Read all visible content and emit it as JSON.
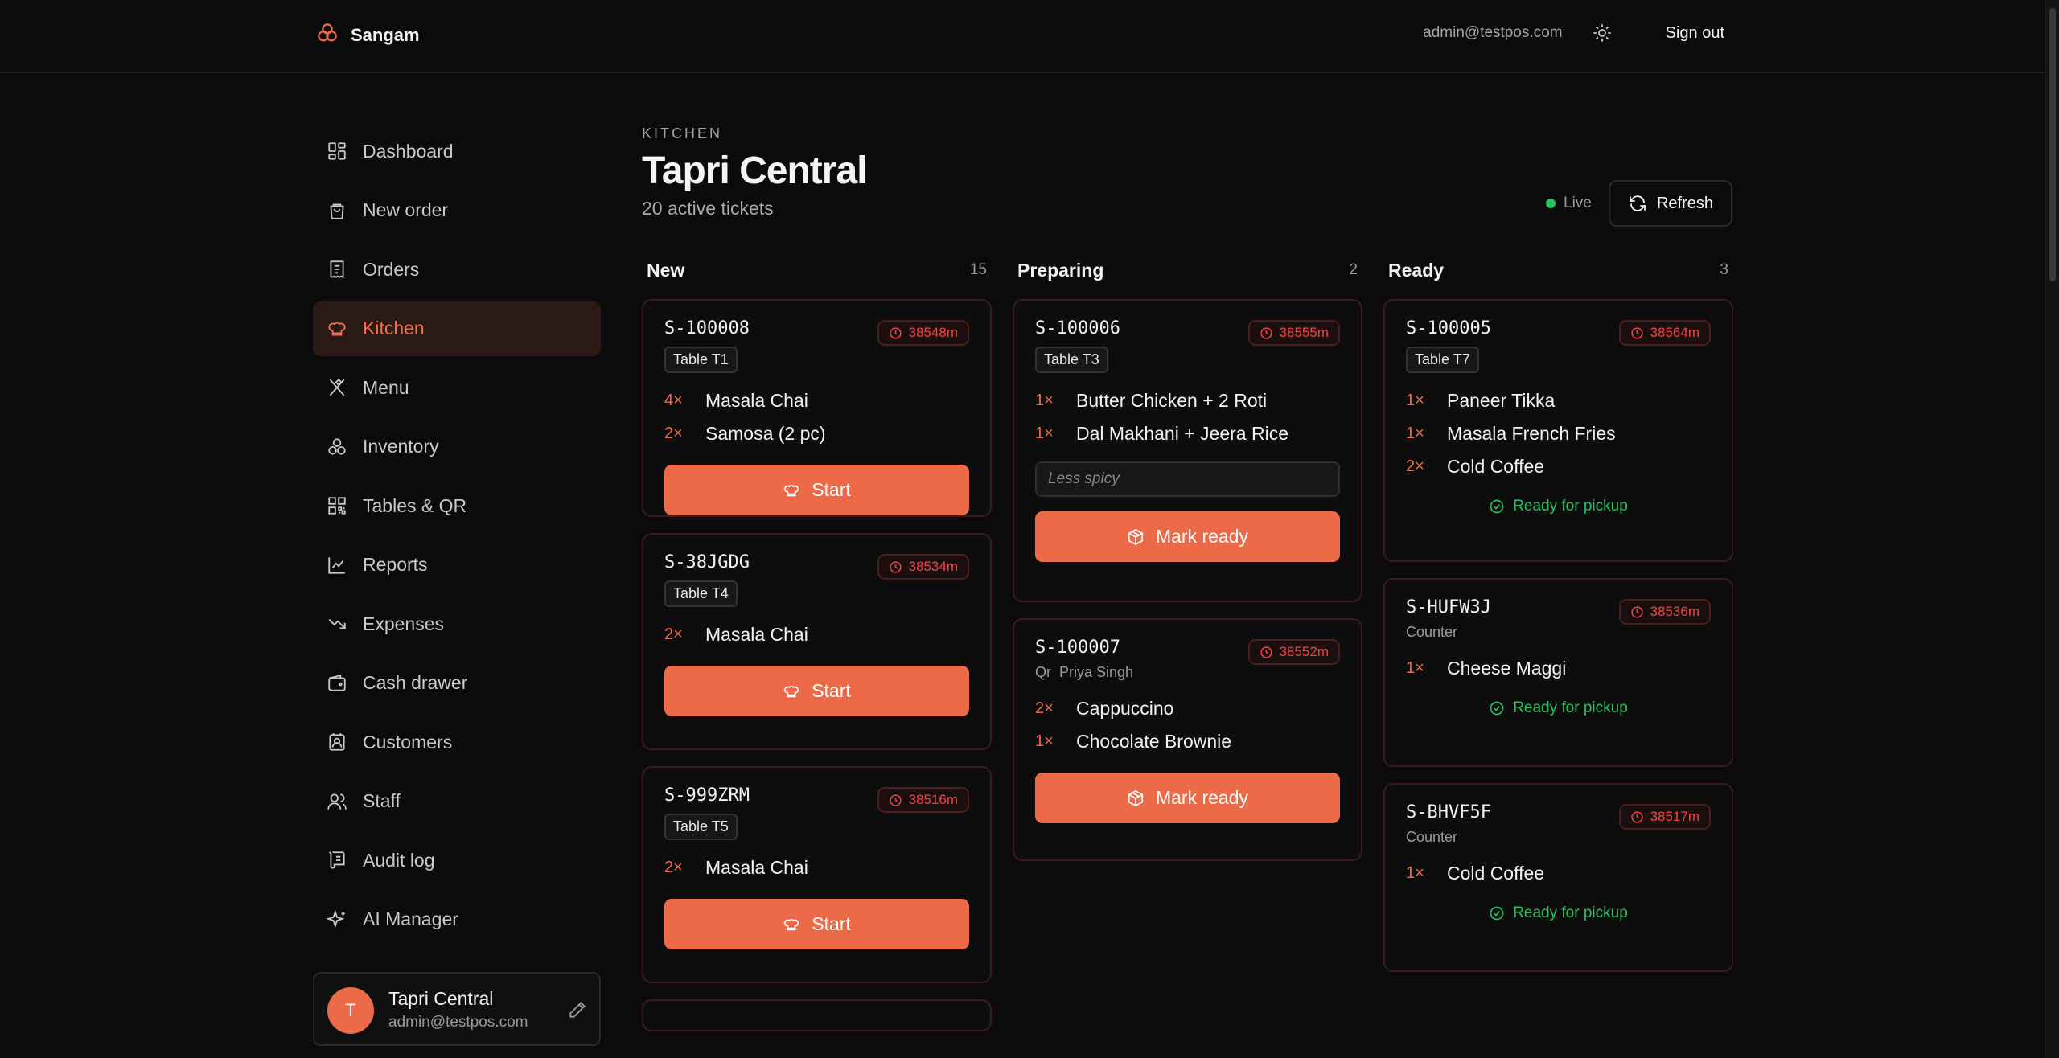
{
  "header": {
    "brand": "Sangam",
    "email": "admin@testpos.com",
    "signout_label": "Sign out"
  },
  "sidebar": {
    "items": [
      {
        "label": "Dashboard",
        "icon": "dashboard-icon"
      },
      {
        "label": "New order",
        "icon": "shopping-bag-icon"
      },
      {
        "label": "Orders",
        "icon": "receipt-icon"
      },
      {
        "label": "Kitchen",
        "icon": "chef-hat-icon",
        "active": true
      },
      {
        "label": "Menu",
        "icon": "utensils-icon"
      },
      {
        "label": "Inventory",
        "icon": "boxes-icon"
      },
      {
        "label": "Tables & QR",
        "icon": "qr-code-icon"
      },
      {
        "label": "Reports",
        "icon": "chart-line-icon"
      },
      {
        "label": "Expenses",
        "icon": "trending-down-icon"
      },
      {
        "label": "Cash drawer",
        "icon": "wallet-icon"
      },
      {
        "label": "Customers",
        "icon": "contact-icon"
      },
      {
        "label": "Staff",
        "icon": "users-icon"
      },
      {
        "label": "Audit log",
        "icon": "scroll-icon"
      },
      {
        "label": "AI Manager",
        "icon": "sparkles-icon"
      }
    ],
    "user": {
      "initial": "T",
      "name": "Tapri Central",
      "email": "admin@testpos.com"
    }
  },
  "page": {
    "kicker": "KITCHEN",
    "title": "Tapri Central",
    "subtitle": "20 active tickets",
    "live_label": "Live",
    "refresh_label": "Refresh"
  },
  "columns": [
    {
      "title": "New",
      "count": "15",
      "tickets": [
        {
          "id": "S-100008",
          "timer": "38548m",
          "table": "Table T1",
          "items": [
            {
              "qty": "4×",
              "name": "Masala Chai"
            },
            {
              "qty": "2×",
              "name": "Samosa (2 pc)"
            }
          ],
          "action": "Start"
        },
        {
          "id": "S-38JGDG",
          "timer": "38534m",
          "table": "Table T4",
          "items": [
            {
              "qty": "2×",
              "name": "Masala Chai"
            }
          ],
          "action": "Start"
        },
        {
          "id": "S-999ZRM",
          "timer": "38516m",
          "table": "Table T5",
          "items": [
            {
              "qty": "2×",
              "name": "Masala Chai"
            }
          ],
          "action": "Start"
        }
      ]
    },
    {
      "title": "Preparing",
      "count": "2",
      "tickets": [
        {
          "id": "S-100006",
          "timer": "38555m",
          "table": "Table T3",
          "items": [
            {
              "qty": "1×",
              "name": "Butter Chicken + 2 Roti"
            },
            {
              "qty": "1×",
              "name": "Dal Makhani + Jeera Rice"
            }
          ],
          "note": "Less spicy",
          "action": "Mark ready"
        },
        {
          "id": "S-100007",
          "timer": "38552m",
          "source_type": "Qr",
          "source_name": "Priya Singh",
          "items": [
            {
              "qty": "2×",
              "name": "Cappuccino"
            },
            {
              "qty": "1×",
              "name": "Chocolate Brownie"
            }
          ],
          "action": "Mark ready"
        }
      ]
    },
    {
      "title": "Ready",
      "count": "3",
      "tickets": [
        {
          "id": "S-100005",
          "timer": "38564m",
          "table": "Table T7",
          "items": [
            {
              "qty": "1×",
              "name": "Paneer Tikka"
            },
            {
              "qty": "1×",
              "name": "Masala French Fries"
            },
            {
              "qty": "2×",
              "name": "Cold Coffee"
            }
          ],
          "status": "Ready for pickup"
        },
        {
          "id": "S-HUFW3J",
          "timer": "38536m",
          "source_name": "Counter",
          "items": [
            {
              "qty": "1×",
              "name": "Cheese Maggi"
            }
          ],
          "status": "Ready for pickup"
        },
        {
          "id": "S-BHVF5F",
          "timer": "38517m",
          "source_name": "Counter",
          "items": [
            {
              "qty": "1×",
              "name": "Cold Coffee"
            }
          ],
          "status": "Ready for pickup"
        }
      ]
    }
  ],
  "colors": {
    "accent": "#ec6a47",
    "timer_red": "#ef4444",
    "ready_green": "#22c55e",
    "background": "#0b0b0c"
  }
}
